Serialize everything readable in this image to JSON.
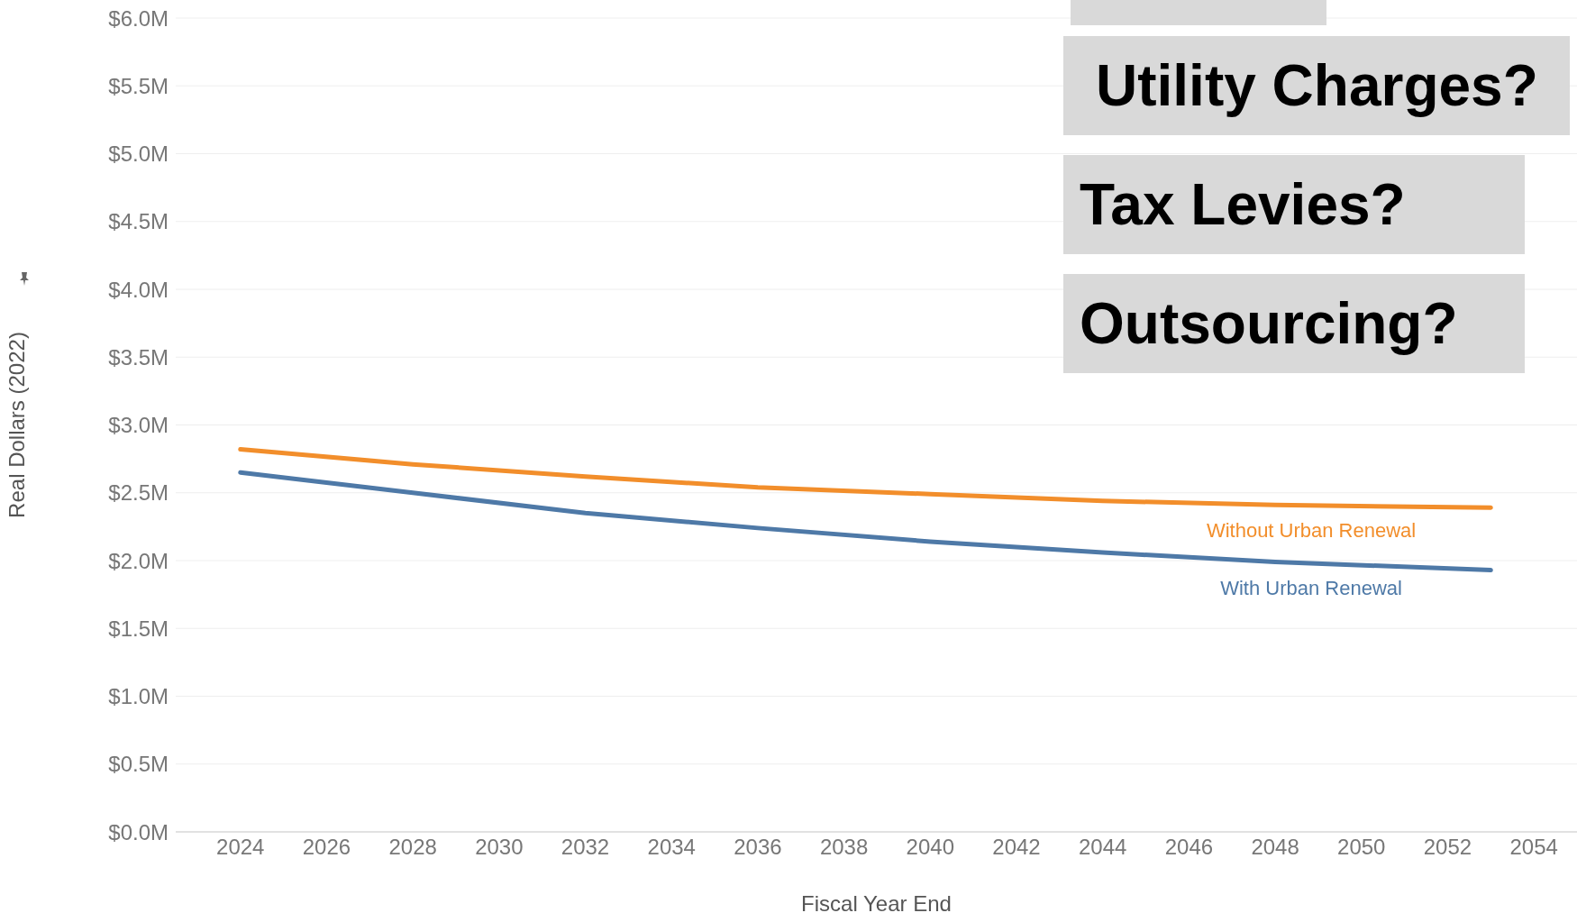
{
  "chart_data": {
    "type": "line",
    "xlabel": "Fiscal Year End",
    "ylabel": "Real Dollars (2022)",
    "x": [
      2024,
      2028,
      2032,
      2036,
      2040,
      2044,
      2048,
      2053
    ],
    "series": [
      {
        "name": "Without Urban Renewal",
        "color": "#f28e2b",
        "values": [
          2.82,
          2.71,
          2.62,
          2.54,
          2.49,
          2.44,
          2.41,
          2.39
        ]
      },
      {
        "name": "With Urban Renewal",
        "color": "#4e79a7",
        "values": [
          2.65,
          2.5,
          2.35,
          2.24,
          2.14,
          2.06,
          1.99,
          1.93
        ]
      }
    ],
    "xlim": [
      2022.5,
      2055
    ],
    "xticks": [
      2024,
      2026,
      2028,
      2030,
      2032,
      2034,
      2036,
      2038,
      2040,
      2042,
      2044,
      2046,
      2048,
      2050,
      2052,
      2054
    ],
    "ylim": [
      0,
      6
    ],
    "yticks": [
      {
        "value": 0,
        "label": "$0.0M"
      },
      {
        "value": 0.5,
        "label": "$0.5M"
      },
      {
        "value": 1,
        "label": "$1.0M"
      },
      {
        "value": 1.5,
        "label": "$1.5M"
      },
      {
        "value": 2,
        "label": "$2.0M"
      },
      {
        "value": 2.5,
        "label": "$2.5M"
      },
      {
        "value": 3,
        "label": "$3.0M"
      },
      {
        "value": 3.5,
        "label": "$3.5M"
      },
      {
        "value": 4,
        "label": "$4.0M"
      },
      {
        "value": 4.5,
        "label": "$4.5M"
      },
      {
        "value": 5,
        "label": "$5.0M"
      },
      {
        "value": 5.5,
        "label": "$5.5M"
      },
      {
        "value": 6,
        "label": "$6.0M"
      }
    ],
    "grid": "y",
    "marker": "none",
    "line_style": "solid",
    "annotations": [
      "Utility Charges?",
      "Tax Levies?",
      "Outsourcing?"
    ]
  }
}
